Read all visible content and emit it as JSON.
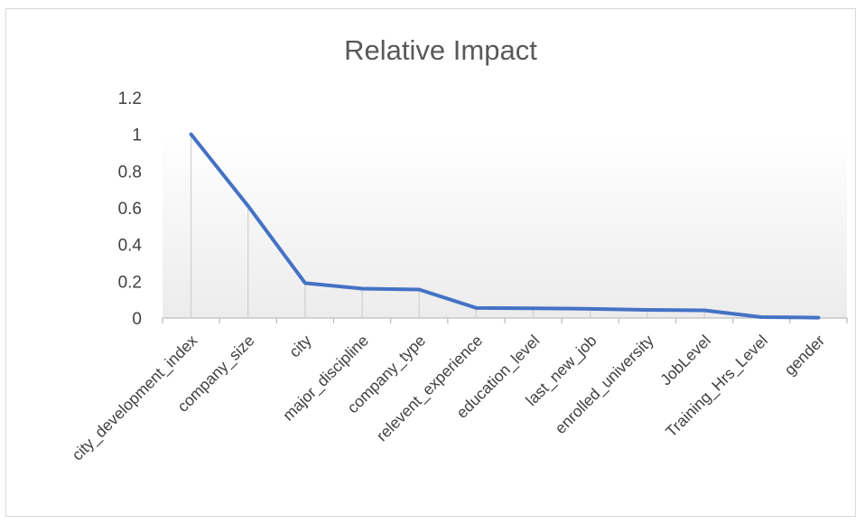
{
  "chart_data": {
    "type": "line",
    "title": "Relative Impact",
    "xlabel": "",
    "ylabel": "",
    "categories": [
      "city_development_index",
      "company_size",
      "city",
      "major_discipline",
      "company_type",
      "relevent_experience",
      "education_level",
      "last_new_job",
      "enrolled_university",
      "JobLevel",
      "Training_Hrs_Level",
      "gender"
    ],
    "series": [
      {
        "values": [
          1.0,
          0.61,
          0.19,
          0.16,
          0.155,
          0.055,
          0.053,
          0.05,
          0.044,
          0.042,
          0.005,
          0.002
        ]
      }
    ],
    "ylim": [
      0,
      1.2
    ],
    "yticks": [
      "0",
      "0.2",
      "0.4",
      "0.6",
      "0.8",
      "1",
      "1.2"
    ],
    "line_color": "#4472c4",
    "drop_lines": true,
    "grid": false,
    "legend": "none"
  }
}
